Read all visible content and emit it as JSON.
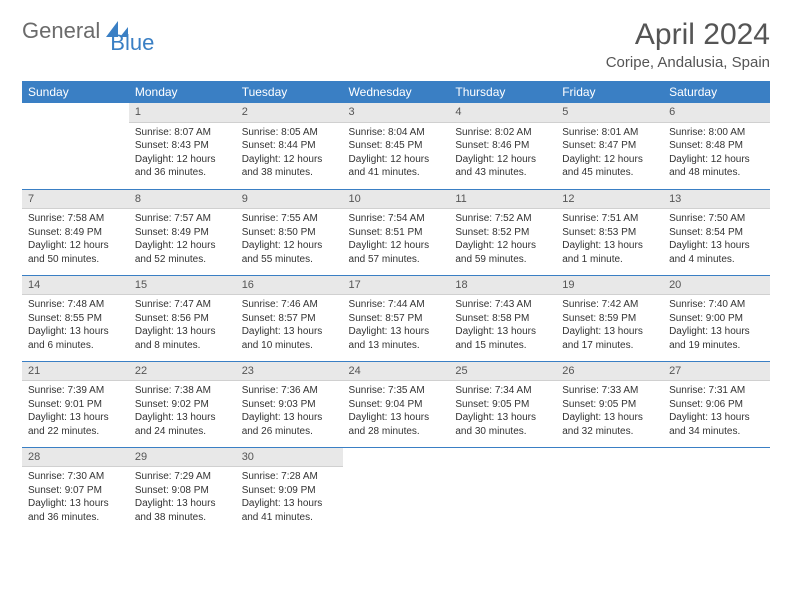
{
  "brand": {
    "part1": "General",
    "part2": "Blue"
  },
  "title": "April 2024",
  "location": "Coripe, Andalusia, Spain",
  "colors": {
    "accent": "#3a7fc4",
    "header_text": "#ffffff",
    "daynum_bg": "#e8e8e8",
    "text": "#333333",
    "muted": "#555555"
  },
  "weekdays": [
    "Sunday",
    "Monday",
    "Tuesday",
    "Wednesday",
    "Thursday",
    "Friday",
    "Saturday"
  ],
  "weeks": [
    [
      null,
      {
        "n": "1",
        "sr": "8:07 AM",
        "ss": "8:43 PM",
        "dl": "12 hours and 36 minutes."
      },
      {
        "n": "2",
        "sr": "8:05 AM",
        "ss": "8:44 PM",
        "dl": "12 hours and 38 minutes."
      },
      {
        "n": "3",
        "sr": "8:04 AM",
        "ss": "8:45 PM",
        "dl": "12 hours and 41 minutes."
      },
      {
        "n": "4",
        "sr": "8:02 AM",
        "ss": "8:46 PM",
        "dl": "12 hours and 43 minutes."
      },
      {
        "n": "5",
        "sr": "8:01 AM",
        "ss": "8:47 PM",
        "dl": "12 hours and 45 minutes."
      },
      {
        "n": "6",
        "sr": "8:00 AM",
        "ss": "8:48 PM",
        "dl": "12 hours and 48 minutes."
      }
    ],
    [
      {
        "n": "7",
        "sr": "7:58 AM",
        "ss": "8:49 PM",
        "dl": "12 hours and 50 minutes."
      },
      {
        "n": "8",
        "sr": "7:57 AM",
        "ss": "8:49 PM",
        "dl": "12 hours and 52 minutes."
      },
      {
        "n": "9",
        "sr": "7:55 AM",
        "ss": "8:50 PM",
        "dl": "12 hours and 55 minutes."
      },
      {
        "n": "10",
        "sr": "7:54 AM",
        "ss": "8:51 PM",
        "dl": "12 hours and 57 minutes."
      },
      {
        "n": "11",
        "sr": "7:52 AM",
        "ss": "8:52 PM",
        "dl": "12 hours and 59 minutes."
      },
      {
        "n": "12",
        "sr": "7:51 AM",
        "ss": "8:53 PM",
        "dl": "13 hours and 1 minute."
      },
      {
        "n": "13",
        "sr": "7:50 AM",
        "ss": "8:54 PM",
        "dl": "13 hours and 4 minutes."
      }
    ],
    [
      {
        "n": "14",
        "sr": "7:48 AM",
        "ss": "8:55 PM",
        "dl": "13 hours and 6 minutes."
      },
      {
        "n": "15",
        "sr": "7:47 AM",
        "ss": "8:56 PM",
        "dl": "13 hours and 8 minutes."
      },
      {
        "n": "16",
        "sr": "7:46 AM",
        "ss": "8:57 PM",
        "dl": "13 hours and 10 minutes."
      },
      {
        "n": "17",
        "sr": "7:44 AM",
        "ss": "8:57 PM",
        "dl": "13 hours and 13 minutes."
      },
      {
        "n": "18",
        "sr": "7:43 AM",
        "ss": "8:58 PM",
        "dl": "13 hours and 15 minutes."
      },
      {
        "n": "19",
        "sr": "7:42 AM",
        "ss": "8:59 PM",
        "dl": "13 hours and 17 minutes."
      },
      {
        "n": "20",
        "sr": "7:40 AM",
        "ss": "9:00 PM",
        "dl": "13 hours and 19 minutes."
      }
    ],
    [
      {
        "n": "21",
        "sr": "7:39 AM",
        "ss": "9:01 PM",
        "dl": "13 hours and 22 minutes."
      },
      {
        "n": "22",
        "sr": "7:38 AM",
        "ss": "9:02 PM",
        "dl": "13 hours and 24 minutes."
      },
      {
        "n": "23",
        "sr": "7:36 AM",
        "ss": "9:03 PM",
        "dl": "13 hours and 26 minutes."
      },
      {
        "n": "24",
        "sr": "7:35 AM",
        "ss": "9:04 PM",
        "dl": "13 hours and 28 minutes."
      },
      {
        "n": "25",
        "sr": "7:34 AM",
        "ss": "9:05 PM",
        "dl": "13 hours and 30 minutes."
      },
      {
        "n": "26",
        "sr": "7:33 AM",
        "ss": "9:05 PM",
        "dl": "13 hours and 32 minutes."
      },
      {
        "n": "27",
        "sr": "7:31 AM",
        "ss": "9:06 PM",
        "dl": "13 hours and 34 minutes."
      }
    ],
    [
      {
        "n": "28",
        "sr": "7:30 AM",
        "ss": "9:07 PM",
        "dl": "13 hours and 36 minutes."
      },
      {
        "n": "29",
        "sr": "7:29 AM",
        "ss": "9:08 PM",
        "dl": "13 hours and 38 minutes."
      },
      {
        "n": "30",
        "sr": "7:28 AM",
        "ss": "9:09 PM",
        "dl": "13 hours and 41 minutes."
      },
      null,
      null,
      null,
      null
    ]
  ],
  "labels": {
    "sunrise": "Sunrise:",
    "sunset": "Sunset:",
    "daylight": "Daylight:"
  }
}
